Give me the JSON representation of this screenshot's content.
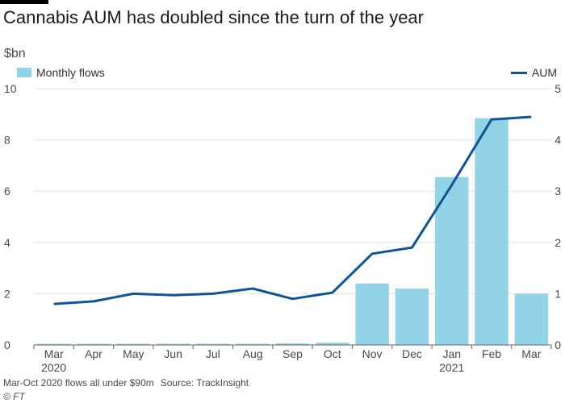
{
  "title": "Cannabis AUM has doubled since the turn of the year",
  "unit_label": "$bn",
  "legend": {
    "bars": "Monthly flows",
    "line": "AUM"
  },
  "footnote": "Mar-Oct 2020 flows all under $90m",
  "source": "Source: TrackInsight",
  "credit": "© FT",
  "colors": {
    "bars": "#93d3e8",
    "line": "#0f5499",
    "grid": "#e6e1dc",
    "axis": "#66605c"
  },
  "chart_data": {
    "type": "bar",
    "categories": [
      "Mar",
      "Apr",
      "May",
      "Jun",
      "Jul",
      "Aug",
      "Sep",
      "Oct",
      "Nov",
      "Dec",
      "Jan",
      "Feb",
      "Mar"
    ],
    "year_labels": [
      "2020",
      "",
      "",
      "",
      "",
      "",
      "",
      "",
      "",
      "",
      "2021",
      "",
      ""
    ],
    "series": [
      {
        "name": "Monthly flows",
        "kind": "bar",
        "axis": "left",
        "values": [
          0.01,
          0.01,
          0.02,
          0.04,
          0.01,
          0.02,
          0.06,
          0.09,
          2.4,
          2.2,
          6.55,
          8.85,
          2.0
        ]
      },
      {
        "name": "AUM",
        "kind": "line",
        "axis": "right",
        "values": [
          0.8,
          0.85,
          1.0,
          0.97,
          1.0,
          1.1,
          0.9,
          1.02,
          1.78,
          1.9,
          3.12,
          4.4,
          4.45
        ]
      }
    ],
    "y_left": {
      "min": 0,
      "max": 10,
      "ticks": [
        0,
        2,
        4,
        6,
        8,
        10
      ]
    },
    "y_right": {
      "min": 0,
      "max": 5,
      "ticks": [
        0,
        1,
        2,
        3,
        4,
        5
      ]
    },
    "grid": true
  }
}
